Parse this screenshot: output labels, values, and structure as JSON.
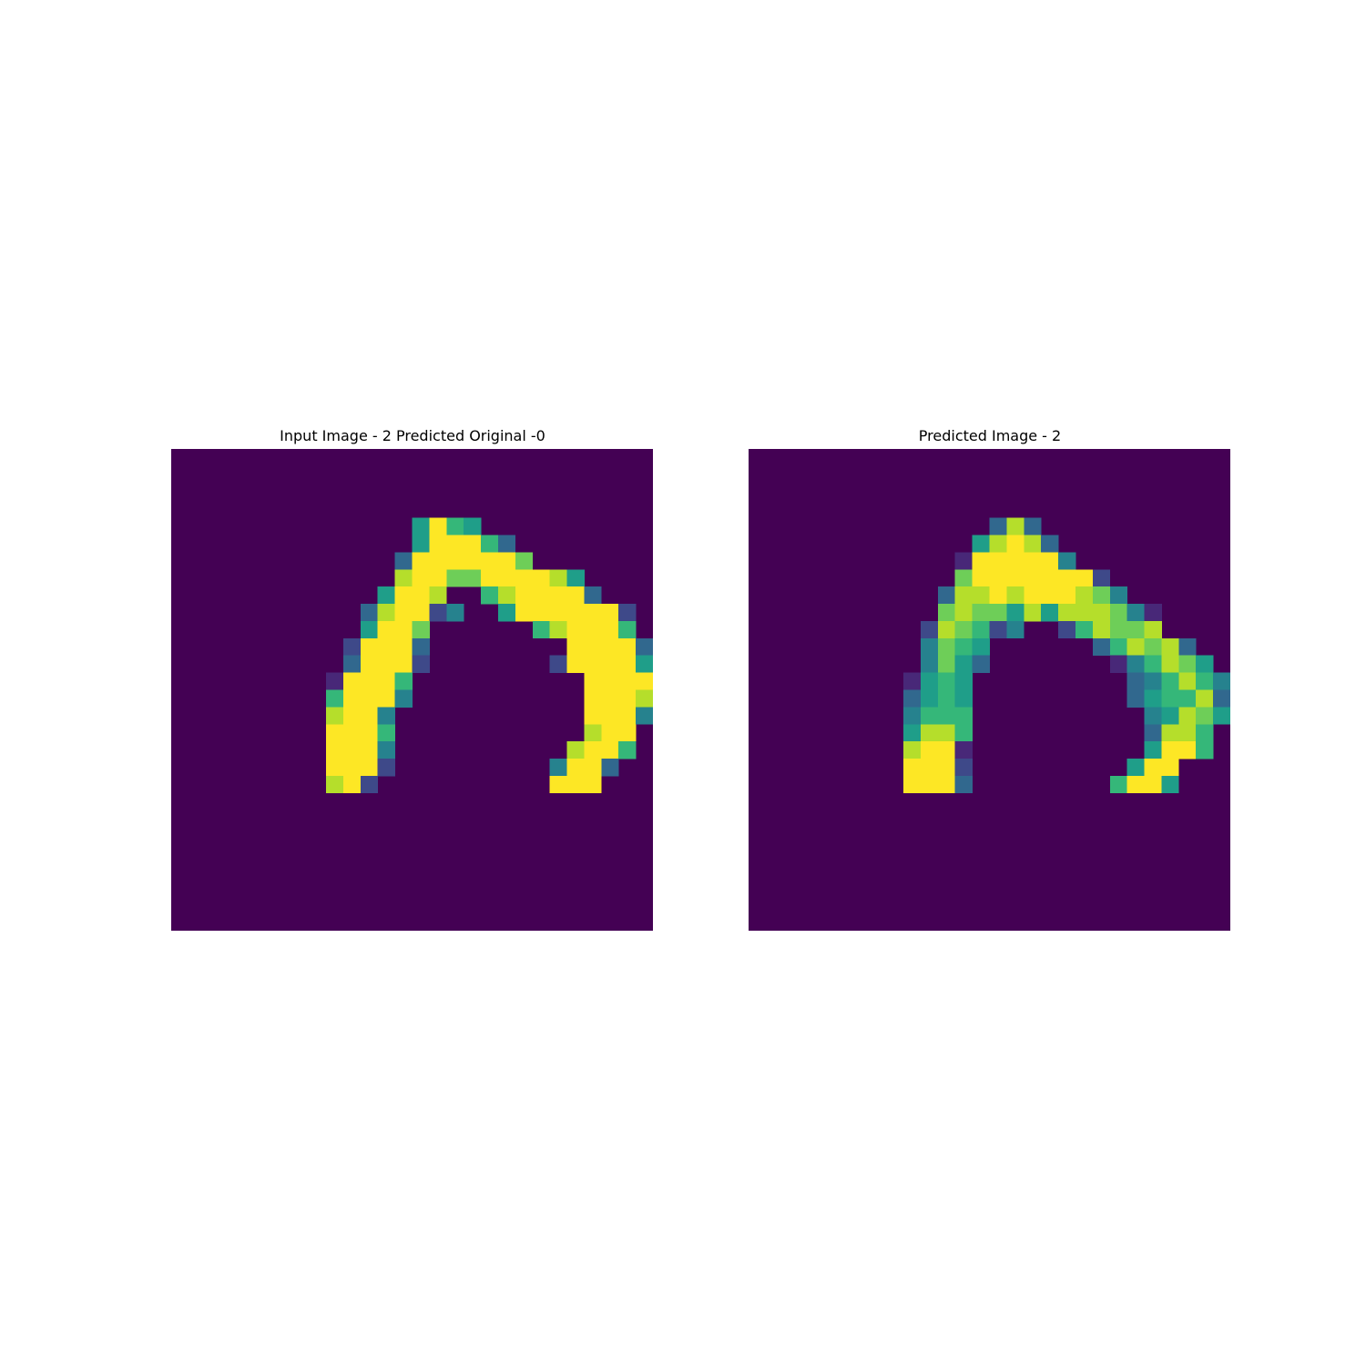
{
  "chart_data": [
    {
      "type": "heatmap",
      "title": "Input Image - 2 Predicted Original -0",
      "colormap": "viridis",
      "value_range": [
        0,
        1
      ],
      "rows": [
        "0000000000000000000000000000",
        "0000000000000000000000000000",
        "0000000000000000000000000000",
        "0000000000000000000000000000",
        "0000000000000059650000000000",
        "0000000000000059996300000000",
        "0000000000000399999970000000",
        "0000000000000899779999850000",
        "0000000000005998006899993000",
        "0000000000038992400599999920",
        "0000000000059970000006899960",
        "0000000000299930000000099993",
        "0000000000399920000000299995",
        "0000000001999600000000009999",
        "0000000006999400000000009998",
        "0000000008994000000000009994",
        "0000000009996000000000008990",
        "0000000009994000000000089960",
        "0000000009992000000000499300",
        "0000000008920000000000999000",
        "0000000000000000000000000000",
        "0000000000000000000000000000",
        "0000000000000000000000000000",
        "0000000000000000000000000000",
        "0000000000000000000000000000",
        "0000000000000000000000000000",
        "0000000000000000000000000000",
        "0000000000000000000000000000"
      ]
    },
    {
      "type": "heatmap",
      "title": "Predicted Image - 2",
      "colormap": "viridis",
      "value_range": [
        0,
        1
      ],
      "rows": [
        "0000000000000000000000000000",
        "0000000000000000000000000000",
        "0000000000000000000000000000",
        "0000000000000000000000000000",
        "0000000000000038300000000000",
        "0000000000000589830000000000",
        "0000000000001999994000000000",
        "0000000000007999999920000000",
        "0000000000038898999874000000",
        "0000000000078775858887410000",
        "0000000000287624002687780000",
        "0000000000476500000036878300",
        "0000000000475300000001468750",
        "0000000001565000000000346864",
        "0000000003565000000000356683",
        "0000000004666000000000045875",
        "0000000005886000000000038860",
        "0000000008991000000000059960",
        "0000000009992000000000599000",
        "0000000009993000000006995000",
        "0000000000000000000000000000",
        "0000000000000000000000000000",
        "0000000000000000000000000000",
        "0000000000000000000000000000",
        "0000000000000000000000000000",
        "0000000000000000000000000000",
        "0000000000000000000000000000",
        "0000000000000000000000000000"
      ]
    }
  ]
}
